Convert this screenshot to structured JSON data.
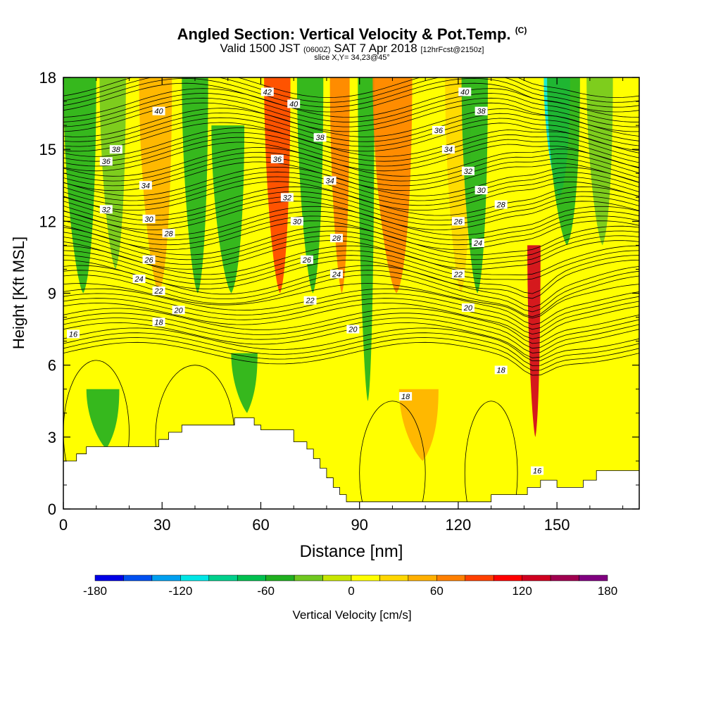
{
  "header": {
    "title": "Angled Section: Vertical Velocity & Pot.Temp.",
    "title_mark": "(C)",
    "valid_prefix": "Valid 1500 JST",
    "valid_utc": "(0600Z)",
    "valid_date": "SAT 7 Apr 2018",
    "forecast": "[12hrFcst@2150z]",
    "slice": "slice X,Y= 34,23@45°"
  },
  "chart_data": {
    "type": "heatmap",
    "title": "Angled Section: Vertical Velocity & Pot.Temp. (C)",
    "xlabel": "Distance [nm]",
    "ylabel": "Height [Kft MSL]",
    "xlim": [
      0,
      175
    ],
    "ylim": [
      0,
      18
    ],
    "x_ticks": [
      0,
      30,
      60,
      90,
      120,
      150
    ],
    "y_ticks": [
      0,
      3,
      6,
      9,
      12,
      15,
      18
    ],
    "colorbar": {
      "label": "Vertical Velocity [cm/s]",
      "range": [
        -180,
        180
      ],
      "tick_labels": [
        -180,
        -120,
        -60,
        0,
        60,
        120,
        180
      ],
      "colors": [
        "#0000e6",
        "#0050f0",
        "#00a0f0",
        "#00e6e6",
        "#00d08c",
        "#00c050",
        "#20b020",
        "#70c820",
        "#c8e600",
        "#ffff00",
        "#ffd700",
        "#ffb000",
        "#ff8000",
        "#ff4000",
        "#ff0000",
        "#d00020",
        "#a00050",
        "#800080"
      ]
    },
    "velocity_bands": [
      {
        "x": 5,
        "width": 10,
        "value": -50,
        "ytop": 18,
        "ybot": 9
      },
      {
        "x": 15,
        "width": 8,
        "value": -40,
        "ytop": 18,
        "ybot": 10
      },
      {
        "x": 28,
        "width": 10,
        "value": 40,
        "ytop": 18,
        "ybot": 9
      },
      {
        "x": 40,
        "width": 8,
        "value": -60,
        "ytop": 18,
        "ybot": 9
      },
      {
        "x": 50,
        "width": 10,
        "value": -60,
        "ytop": 16,
        "ybot": 9
      },
      {
        "x": 65,
        "width": 8,
        "value": 80,
        "ytop": 18,
        "ybot": 9
      },
      {
        "x": 75,
        "width": 8,
        "value": -50,
        "ytop": 18,
        "ybot": 9
      },
      {
        "x": 84,
        "width": 6,
        "value": 60,
        "ytop": 18,
        "ybot": 9
      },
      {
        "x": 92,
        "width": 5,
        "value": -50,
        "ytop": 18,
        "ybot": 4.5
      },
      {
        "x": 100,
        "width": 12,
        "value": 70,
        "ytop": 18,
        "ybot": 9
      },
      {
        "x": 120,
        "width": 8,
        "value": 20,
        "ytop": 18,
        "ybot": 9
      },
      {
        "x": 125,
        "width": 8,
        "value": -50,
        "ytop": 18,
        "ybot": 9
      },
      {
        "x": 143,
        "width": 4,
        "value": 120,
        "ytop": 11,
        "ybot": 3
      },
      {
        "x": 150,
        "width": 8,
        "value": -120,
        "ytop": 18,
        "ybot": 13
      },
      {
        "x": 152,
        "width": 10,
        "value": -50,
        "ytop": 18,
        "ybot": 11
      },
      {
        "x": 163,
        "width": 8,
        "value": -40,
        "ytop": 18,
        "ybot": 11
      },
      {
        "x": 12,
        "width": 10,
        "value": -60,
        "ytop": 5,
        "ybot": 2.5
      },
      {
        "x": 55,
        "width": 8,
        "value": -60,
        "ytop": 6.5,
        "ybot": 4
      },
      {
        "x": 108,
        "width": 12,
        "value": 40,
        "ytop": 5,
        "ybot": 2
      }
    ],
    "isentropes_C": [
      16,
      18,
      20,
      22,
      24,
      26,
      28,
      30,
      32,
      34,
      36,
      38,
      40,
      42
    ],
    "isentrope_labels": [
      {
        "x": 3,
        "y": 7.3,
        "text": "16"
      },
      {
        "x": 29,
        "y": 7.8,
        "text": "18"
      },
      {
        "x": 35,
        "y": 8.3,
        "text": "20"
      },
      {
        "x": 29,
        "y": 9.1,
        "text": "22"
      },
      {
        "x": 23,
        "y": 9.6,
        "text": "24"
      },
      {
        "x": 26,
        "y": 10.4,
        "text": "26"
      },
      {
        "x": 32,
        "y": 11.5,
        "text": "28"
      },
      {
        "x": 26,
        "y": 12.1,
        "text": "30"
      },
      {
        "x": 13,
        "y": 12.5,
        "text": "32"
      },
      {
        "x": 25,
        "y": 13.5,
        "text": "34"
      },
      {
        "x": 13,
        "y": 14.5,
        "text": "36"
      },
      {
        "x": 16,
        "y": 15.0,
        "text": "38"
      },
      {
        "x": 29,
        "y": 16.6,
        "text": "40"
      },
      {
        "x": 62,
        "y": 17.4,
        "text": "42"
      },
      {
        "x": 70,
        "y": 16.9,
        "text": "40"
      },
      {
        "x": 78,
        "y": 15.5,
        "text": "38"
      },
      {
        "x": 65,
        "y": 14.6,
        "text": "36"
      },
      {
        "x": 81,
        "y": 13.7,
        "text": "34"
      },
      {
        "x": 68,
        "y": 13.0,
        "text": "32"
      },
      {
        "x": 71,
        "y": 12.0,
        "text": "30"
      },
      {
        "x": 83,
        "y": 11.3,
        "text": "28"
      },
      {
        "x": 74,
        "y": 10.4,
        "text": "26"
      },
      {
        "x": 83,
        "y": 9.8,
        "text": "24"
      },
      {
        "x": 75,
        "y": 8.7,
        "text": "22"
      },
      {
        "x": 88,
        "y": 7.5,
        "text": "20"
      },
      {
        "x": 104,
        "y": 4.7,
        "text": "18"
      },
      {
        "x": 122,
        "y": 17.4,
        "text": "40"
      },
      {
        "x": 127,
        "y": 16.6,
        "text": "38"
      },
      {
        "x": 114,
        "y": 15.8,
        "text": "36"
      },
      {
        "x": 117,
        "y": 15.0,
        "text": "34"
      },
      {
        "x": 123,
        "y": 14.1,
        "text": "32"
      },
      {
        "x": 127,
        "y": 13.3,
        "text": "30"
      },
      {
        "x": 133,
        "y": 12.7,
        "text": "28"
      },
      {
        "x": 120,
        "y": 12.0,
        "text": "26"
      },
      {
        "x": 126,
        "y": 11.1,
        "text": "24"
      },
      {
        "x": 120,
        "y": 9.8,
        "text": "22"
      },
      {
        "x": 123,
        "y": 8.4,
        "text": "20"
      },
      {
        "x": 133,
        "y": 5.8,
        "text": "18"
      },
      {
        "x": 144,
        "y": 1.6,
        "text": "16"
      }
    ],
    "terrain": [
      [
        0,
        2
      ],
      [
        4,
        2
      ],
      [
        4,
        2.3
      ],
      [
        7,
        2.3
      ],
      [
        7,
        2.6
      ],
      [
        29,
        2.6
      ],
      [
        29,
        2.9
      ],
      [
        32,
        2.9
      ],
      [
        32,
        3.2
      ],
      [
        36,
        3.2
      ],
      [
        36,
        3.5
      ],
      [
        52,
        3.5
      ],
      [
        52,
        3.8
      ],
      [
        58,
        3.8
      ],
      [
        58,
        3.5
      ],
      [
        60,
        3.5
      ],
      [
        60,
        3.3
      ],
      [
        70,
        3.3
      ],
      [
        70,
        2.8
      ],
      [
        74,
        2.8
      ],
      [
        74,
        2.5
      ],
      [
        76,
        2.5
      ],
      [
        76,
        2.1
      ],
      [
        78,
        2.1
      ],
      [
        78,
        1.7
      ],
      [
        80,
        1.7
      ],
      [
        80,
        1.3
      ],
      [
        82,
        1.3
      ],
      [
        82,
        0.9
      ],
      [
        84,
        0.9
      ],
      [
        84,
        0.6
      ],
      [
        86,
        0.6
      ],
      [
        86,
        0.3
      ],
      [
        130,
        0.3
      ],
      [
        130,
        0.6
      ],
      [
        141,
        0.6
      ],
      [
        141,
        0.9
      ],
      [
        145,
        0.9
      ],
      [
        145,
        1.2
      ],
      [
        150,
        1.2
      ],
      [
        150,
        0.9
      ],
      [
        158,
        0.9
      ],
      [
        158,
        1.2
      ],
      [
        162,
        1.2
      ],
      [
        162,
        1.6
      ],
      [
        175,
        1.6
      ]
    ]
  }
}
